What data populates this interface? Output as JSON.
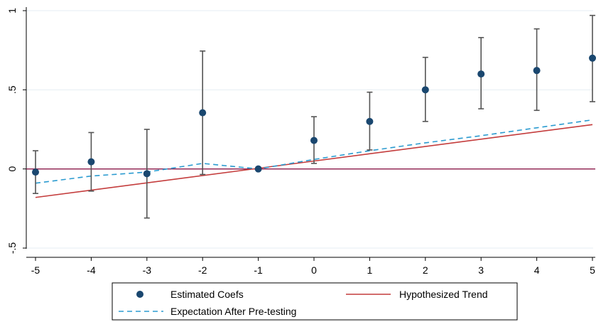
{
  "chart_data": {
    "type": "scatter",
    "title": "",
    "xlabel": "",
    "ylabel": "",
    "xlim": [
      -5,
      5
    ],
    "ylim": [
      -0.5,
      1
    ],
    "x_ticks": [
      "-5",
      "-4",
      "-3",
      "-2",
      "-1",
      "0",
      "1",
      "2",
      "3",
      "4",
      "5"
    ],
    "y_ticks": [
      "-.5",
      "0",
      ".5",
      "1"
    ],
    "grid": "horizontal",
    "legend_position": "bottom",
    "colors": {
      "coef": "#1a476f",
      "trend": "#c43c3c",
      "expectation": "#2b9bd0",
      "zero_line": "#8b1a4a",
      "grid": "#e6eef3",
      "errorbar": "#555555"
    },
    "series": [
      {
        "name": "Estimated Coefs",
        "kind": "points_with_ci",
        "x": [
          -5,
          -4,
          -3,
          -2,
          -1,
          0,
          1,
          2,
          3,
          4,
          5
        ],
        "y": [
          -0.02,
          0.045,
          -0.03,
          0.355,
          0.0,
          0.18,
          0.3,
          0.5,
          0.6,
          0.622,
          0.7
        ],
        "ci_low": [
          -0.155,
          -0.14,
          -0.31,
          -0.035,
          0.0,
          0.035,
          0.12,
          0.3,
          0.38,
          0.37,
          0.425
        ],
        "ci_high": [
          0.115,
          0.23,
          0.25,
          0.745,
          0.0,
          0.33,
          0.485,
          0.705,
          0.83,
          0.885,
          0.97
        ]
      },
      {
        "name": "Hypothesized Trend",
        "kind": "line",
        "x": [
          -5,
          5
        ],
        "y": [
          -0.18,
          0.28
        ]
      },
      {
        "name": "Expectation After Pre-testing",
        "kind": "dashed_line",
        "x": [
          -5,
          -4,
          -3,
          -2,
          -1,
          0,
          1,
          2,
          3,
          4,
          5
        ],
        "y": [
          -0.09,
          -0.045,
          -0.02,
          0.035,
          0.0,
          0.06,
          0.115,
          0.165,
          0.21,
          0.26,
          0.31
        ]
      },
      {
        "name": "",
        "kind": "reference_line",
        "y": 0
      }
    ]
  }
}
